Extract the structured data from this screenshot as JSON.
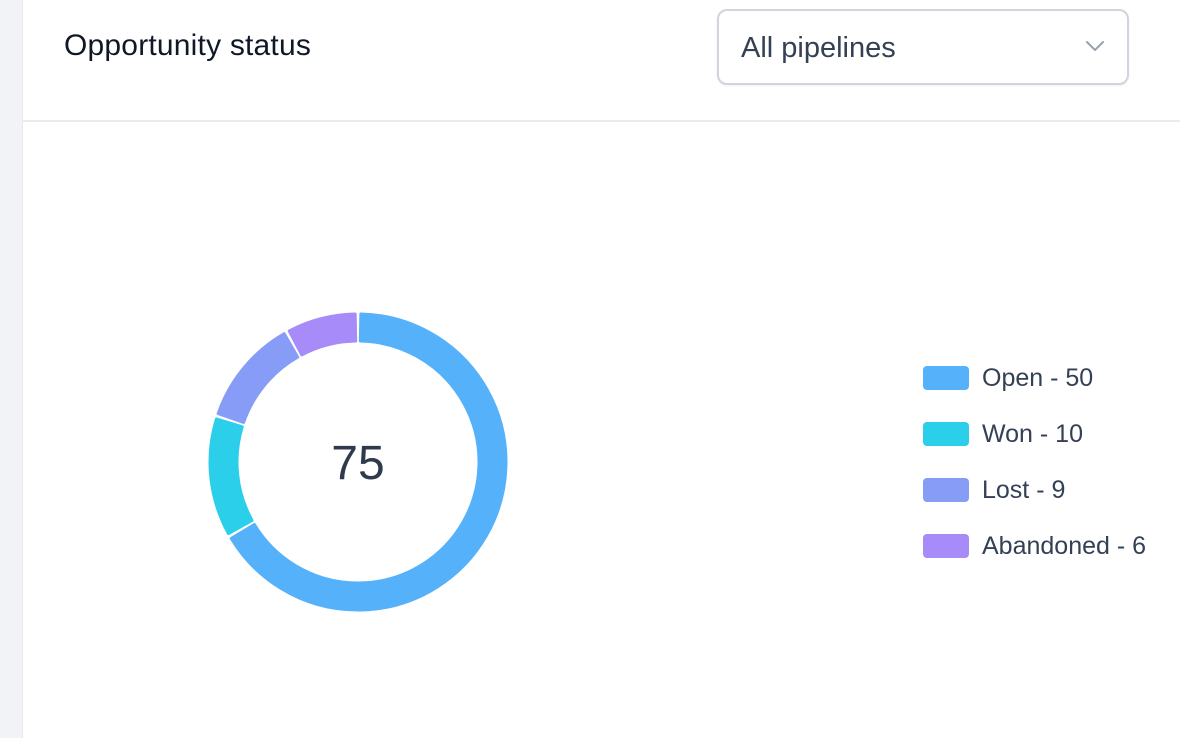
{
  "header": {
    "title": "Opportunity status",
    "pipeline_select": {
      "value": "All pipelines",
      "icon": "chevron-down-icon"
    }
  },
  "chart_data": {
    "type": "pie",
    "variant": "donut",
    "center_label": "75",
    "total": 75,
    "categories": [
      "Open",
      "Won",
      "Lost",
      "Abandoned"
    ],
    "values": [
      50,
      10,
      9,
      6
    ],
    "colors": [
      "#56b1fb",
      "#2ccfea",
      "#879cf6",
      "#a78bf8"
    ],
    "legend": {
      "placement": "right",
      "entries": [
        "Open - 50",
        "Won - 10",
        "Lost - 9",
        "Abandoned - 6"
      ]
    }
  }
}
